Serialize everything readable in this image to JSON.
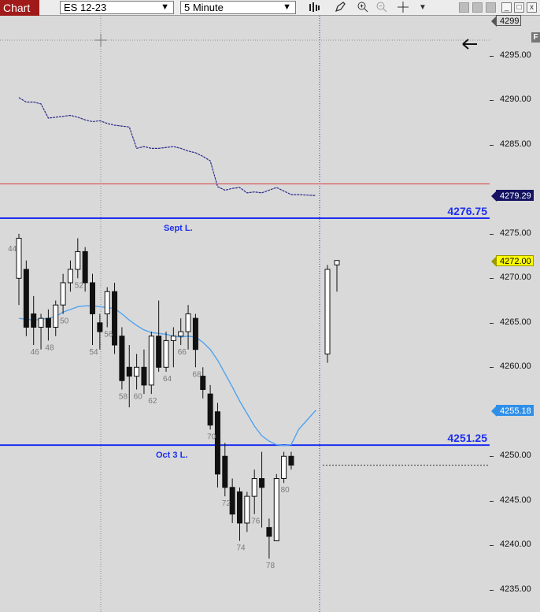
{
  "toolbar": {
    "tab_label": "Chart",
    "instrument": "ES 12-23",
    "interval": "5 Minute",
    "dropdown_arrow": "❯",
    "icons": [
      "bar-style-icon",
      "pencil-icon",
      "zoom-in-icon",
      "zoom-out-icon",
      "crosshair-icon",
      "dropdown-triangle-icon"
    ],
    "window_buttons": [
      "minimize",
      "restore",
      "close"
    ]
  },
  "price_axis": {
    "labels": [
      "4295.00",
      "4290.00",
      "4285.00",
      "4275.00",
      "4270.00",
      "4265.00",
      "4260.00",
      "4250.00",
      "4245.00",
      "4240.00",
      "4235.00"
    ],
    "tags": [
      {
        "id": "top",
        "text": "4299",
        "color": "#d9d9d9",
        "text_color": "#111",
        "border": "#555"
      },
      {
        "id": "current-dashed",
        "text": "4279.29",
        "color": "#141463",
        "text_color": "#ffffff",
        "border": "#141463"
      },
      {
        "id": "last-price",
        "text": "4272.00",
        "color": "#ffff00",
        "text_color": "#000000",
        "border": "#999900"
      },
      {
        "id": "ema",
        "text": "4255.18",
        "color": "#2f8fe8",
        "text_color": "#ffffff",
        "border": "#2f8fe8"
      }
    ],
    "f_button": "F"
  },
  "levels": [
    {
      "name": "Sept L.",
      "price": 4276.75,
      "label": "4276.75"
    },
    {
      "name": "Oct 3 L.",
      "price": 4251.25,
      "label": "4251.25"
    }
  ],
  "chart_data": {
    "type": "candlestick",
    "instrument": "ES 12-23",
    "interval": "5 Minute",
    "ylim": [
      4232.5,
      4299.5
    ],
    "bar_labels": [
      "44",
      "46",
      "48",
      "50",
      "52",
      "54",
      "56",
      "58",
      "60",
      "62",
      "64",
      "66",
      "68",
      "70",
      "72",
      "74",
      "76",
      "78",
      "80"
    ],
    "candles": [
      {
        "n": 44,
        "o": 4270.0,
        "h": 4275.0,
        "l": 4267.0,
        "c": 4274.5
      },
      {
        "n": 45,
        "o": 4271.0,
        "h": 4272.0,
        "l": 4263.5,
        "c": 4264.5
      },
      {
        "n": 46,
        "o": 4266.0,
        "h": 4268.0,
        "l": 4262.5,
        "c": 4264.5
      },
      {
        "n": 47,
        "o": 4264.5,
        "h": 4266.0,
        "l": 4262.0,
        "c": 4265.5
      },
      {
        "n": 48,
        "o": 4265.5,
        "h": 4266.5,
        "l": 4263.0,
        "c": 4264.5
      },
      {
        "n": 49,
        "o": 4264.5,
        "h": 4267.5,
        "l": 4263.5,
        "c": 4267.0
      },
      {
        "n": 50,
        "o": 4267.0,
        "h": 4270.5,
        "l": 4266.0,
        "c": 4269.5
      },
      {
        "n": 51,
        "o": 4269.5,
        "h": 4272.0,
        "l": 4268.5,
        "c": 4271.0
      },
      {
        "n": 52,
        "o": 4271.0,
        "h": 4274.5,
        "l": 4270.0,
        "c": 4273.0
      },
      {
        "n": 53,
        "o": 4273.0,
        "h": 4273.5,
        "l": 4268.5,
        "c": 4269.5
      },
      {
        "n": 54,
        "o": 4269.5,
        "h": 4270.5,
        "l": 4262.5,
        "c": 4266.0
      },
      {
        "n": 55,
        "o": 4265.0,
        "h": 4266.0,
        "l": 4262.0,
        "c": 4264.0
      },
      {
        "n": 56,
        "o": 4266.0,
        "h": 4269.0,
        "l": 4264.5,
        "c": 4268.5
      },
      {
        "n": 57,
        "o": 4268.5,
        "h": 4269.5,
        "l": 4261.5,
        "c": 4262.5
      },
      {
        "n": 58,
        "o": 4263.5,
        "h": 4264.5,
        "l": 4257.5,
        "c": 4258.5
      },
      {
        "n": 59,
        "o": 4260.0,
        "h": 4262.5,
        "l": 4255.5,
        "c": 4259.0
      },
      {
        "n": 60,
        "o": 4259.0,
        "h": 4261.5,
        "l": 4257.5,
        "c": 4260.0
      },
      {
        "n": 61,
        "o": 4260.0,
        "h": 4262.0,
        "l": 4257.0,
        "c": 4258.0
      },
      {
        "n": 62,
        "o": 4258.0,
        "h": 4264.0,
        "l": 4257.0,
        "c": 4263.5
      },
      {
        "n": 63,
        "o": 4263.5,
        "h": 4267.5,
        "l": 4259.5,
        "c": 4260.0
      },
      {
        "n": 64,
        "o": 4260.0,
        "h": 4264.0,
        "l": 4259.5,
        "c": 4263.0
      },
      {
        "n": 65,
        "o": 4263.0,
        "h": 4264.5,
        "l": 4260.0,
        "c": 4263.5
      },
      {
        "n": 66,
        "o": 4263.5,
        "h": 4265.5,
        "l": 4262.5,
        "c": 4264.0
      },
      {
        "n": 67,
        "o": 4264.0,
        "h": 4267.0,
        "l": 4262.0,
        "c": 4266.0
      },
      {
        "n": 68,
        "o": 4265.5,
        "h": 4266.0,
        "l": 4260.0,
        "c": 4262.0
      },
      {
        "n": 69,
        "o": 4259.0,
        "h": 4260.0,
        "l": 4256.5,
        "c": 4257.5
      },
      {
        "n": 70,
        "o": 4257.0,
        "h": 4258.0,
        "l": 4253.0,
        "c": 4253.5
      },
      {
        "n": 71,
        "o": 4255.0,
        "h": 4256.0,
        "l": 4246.5,
        "c": 4248.0
      },
      {
        "n": 72,
        "o": 4250.0,
        "h": 4251.5,
        "l": 4245.5,
        "c": 4246.5
      },
      {
        "n": 73,
        "o": 4246.5,
        "h": 4247.5,
        "l": 4242.5,
        "c": 4243.5
      },
      {
        "n": 74,
        "o": 4246.0,
        "h": 4246.5,
        "l": 4240.5,
        "c": 4242.5
      },
      {
        "n": 75,
        "o": 4242.5,
        "h": 4246.0,
        "l": 4241.5,
        "c": 4245.5
      },
      {
        "n": 76,
        "o": 4245.5,
        "h": 4248.5,
        "l": 4243.5,
        "c": 4247.5
      },
      {
        "n": 77,
        "o": 4247.5,
        "h": 4250.5,
        "l": 4242.0,
        "c": 4246.5
      },
      {
        "n": 78,
        "o": 4242.0,
        "h": 4243.0,
        "l": 4238.5,
        "c": 4241.0
      },
      {
        "n": 79,
        "o": 4240.5,
        "h": 4248.0,
        "l": 4240.5,
        "c": 4247.5
      },
      {
        "n": 80,
        "o": 4247.5,
        "h": 4250.5,
        "l": 4247.0,
        "c": 4250.0
      },
      {
        "n": 81,
        "o": 4250.0,
        "h": 4250.5,
        "l": 4248.5,
        "c": 4249.0
      },
      {
        "n": 82,
        "o": 4261.5,
        "h": 4271.5,
        "l": 4260.5,
        "c": 4271.0
      },
      {
        "n": 83,
        "o": 4271.5,
        "h": 4272.0,
        "l": 4268.5,
        "c": 4272.0
      }
    ],
    "ema_line": [
      4265.5,
      4265.4,
      4265.3,
      4265.4,
      4265.5,
      4265.7,
      4266.2,
      4266.5,
      4266.8,
      4266.9,
      4266.9,
      4266.8,
      4266.7,
      4266.6,
      4266.0,
      4265.3,
      4264.7,
      4264.2,
      4263.9,
      4263.8,
      4263.7,
      4263.5,
      4263.4,
      4263.5,
      4263.4,
      4262.8,
      4262.0,
      4260.8,
      4259.3,
      4257.8,
      4256.2,
      4254.8,
      4253.4,
      4252.3,
      4251.7,
      4251.3,
      4251.2,
      4251.3,
      4253.0,
      4255.18
    ],
    "dashed_line": [
      4290.3,
      4289.8,
      4289.8,
      4289.6,
      4288.0,
      4288.1,
      4288.2,
      4288.3,
      4288.1,
      4287.8,
      4287.6,
      4287.7,
      4287.4,
      4287.2,
      4287.1,
      4287.0,
      4284.6,
      4284.8,
      4284.6,
      4284.6,
      4284.7,
      4284.8,
      4284.6,
      4284.3,
      4284.1,
      4283.7,
      4283.2,
      4280.3,
      4279.9,
      4280.1,
      4280.2,
      4279.6,
      4279.7,
      4279.6,
      4279.9,
      4280.2,
      4279.8,
      4279.4,
      4279.4,
      4279.29
    ],
    "red_line": 4280.6,
    "last_price": 4272.0
  }
}
